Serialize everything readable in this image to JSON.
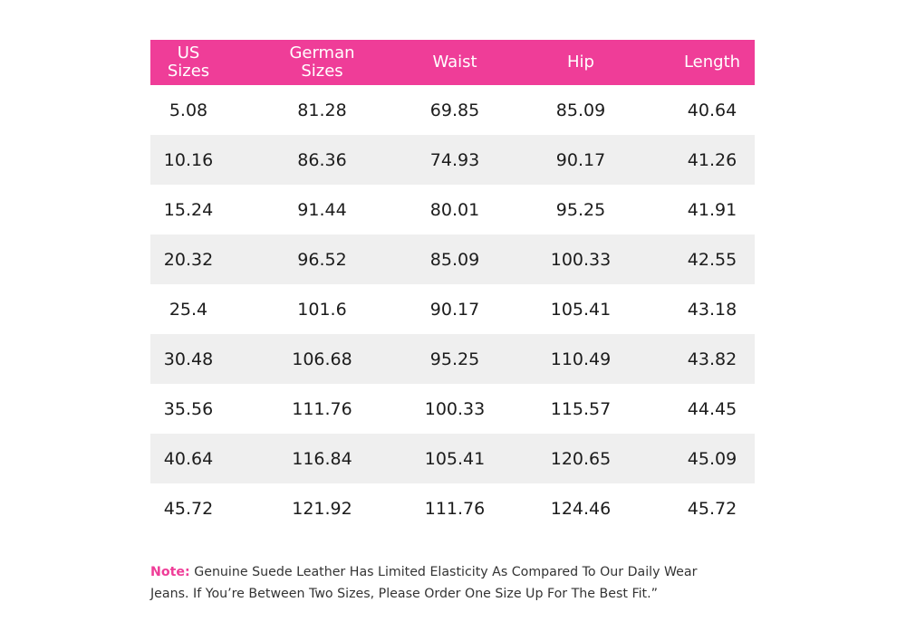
{
  "colors": {
    "header_bg": "#ef3d98",
    "header_text": "#ffffff",
    "stripe": "#efefef",
    "note_label": "#ef3d98"
  },
  "table": {
    "headers": [
      "US\nSizes",
      "German\nSizes",
      "Waist",
      "Hip",
      "Length"
    ],
    "rows": [
      [
        "5.08",
        "81.28",
        "69.85",
        "85.09",
        "40.64"
      ],
      [
        "10.16",
        "86.36",
        "74.93",
        "90.17",
        "41.26"
      ],
      [
        "15.24",
        "91.44",
        "80.01",
        "95.25",
        "41.91"
      ],
      [
        "20.32",
        "96.52",
        "85.09",
        "100.33",
        "42.55"
      ],
      [
        "25.4",
        "101.6",
        "90.17",
        "105.41",
        "43.18"
      ],
      [
        "30.48",
        "106.68",
        "95.25",
        "110.49",
        "43.82"
      ],
      [
        "35.56",
        "111.76",
        "100.33",
        "115.57",
        "44.45"
      ],
      [
        "40.64",
        "116.84",
        "105.41",
        "120.65",
        "45.09"
      ],
      [
        "45.72",
        "121.92",
        "111.76",
        "124.46",
        "45.72"
      ]
    ]
  },
  "note": {
    "label": "Note:",
    "text": "Genuine Suede Leather Has Limited Elasticity As Compared To Our Daily Wear Jeans. If You’re Between Two Sizes, Please Order One Size Up For The Best Fit.”"
  }
}
